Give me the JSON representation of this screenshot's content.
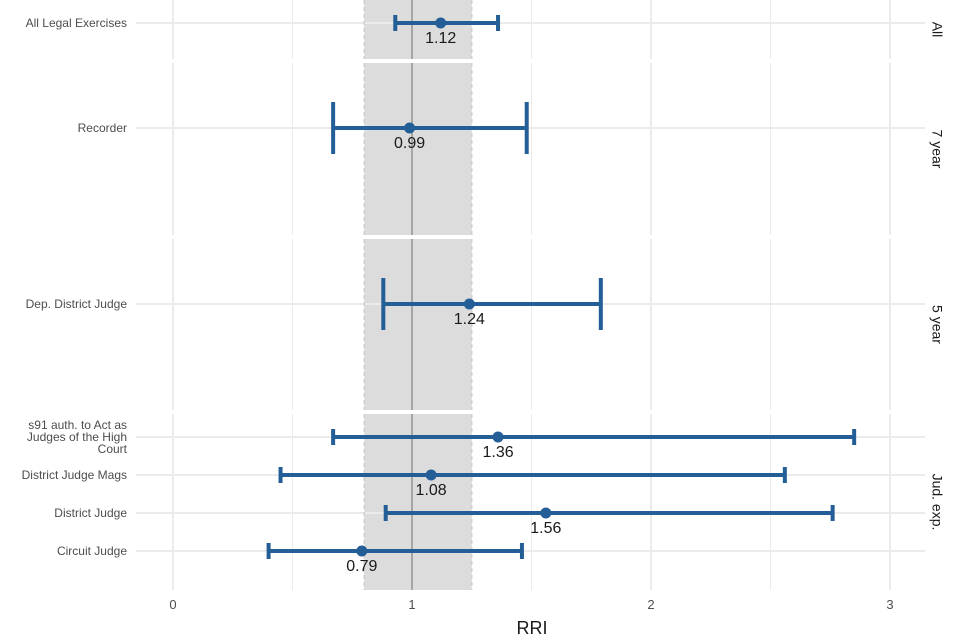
{
  "chart_data": {
    "type": "forest",
    "xlabel": "RRI",
    "xlim": [
      -0.2,
      3.15
    ],
    "x_ticks": [
      "0",
      "1",
      "2",
      "3"
    ],
    "reference_line": 1,
    "reference_band": [
      0.8,
      1.25
    ],
    "grid": true,
    "colors": {
      "series": "#245e97",
      "band": "#dcdcdc",
      "ref_line": "#a6a6a6",
      "grid": "#ebebeb"
    },
    "panels": [
      {
        "label": "All",
        "rows": [
          {
            "label": [
              "All Legal Exercises"
            ],
            "value": 1.12,
            "value_label": "1.12",
            "lower": 0.93,
            "upper": 1.36
          }
        ]
      },
      {
        "label": "7 year",
        "rows": [
          {
            "label": [
              "Recorder"
            ],
            "value": 0.99,
            "value_label": "0.99",
            "lower": 0.67,
            "upper": 1.48
          }
        ]
      },
      {
        "label": "5 year",
        "rows": [
          {
            "label": [
              "Dep. District Judge"
            ],
            "value": 1.24,
            "value_label": "1.24",
            "lower": 0.88,
            "upper": 1.79
          }
        ]
      },
      {
        "label": "Jud. exp.",
        "rows": [
          {
            "label": [
              "s91 auth. to Act as",
              "Judges of the High",
              "Court"
            ],
            "value": 1.36,
            "value_label": "1.36",
            "lower": 0.67,
            "upper": 2.85
          },
          {
            "label": [
              "District Judge Mags"
            ],
            "value": 1.08,
            "value_label": "1.08",
            "lower": 0.45,
            "upper": 2.56
          },
          {
            "label": [
              "District Judge"
            ],
            "value": 1.56,
            "value_label": "1.56",
            "lower": 0.89,
            "upper": 2.76
          },
          {
            "label": [
              "Circuit Judge"
            ],
            "value": 0.79,
            "value_label": "0.79",
            "lower": 0.4,
            "upper": 1.46
          }
        ]
      }
    ]
  }
}
